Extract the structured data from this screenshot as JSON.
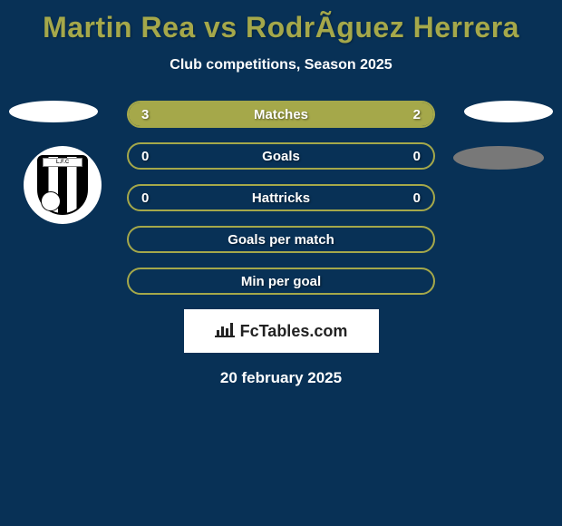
{
  "title": "Martin Rea vs RodrÃ­guez Herrera",
  "subtitle": "Club competitions, Season 2025",
  "crest_text": "L.F.C",
  "date": "20 february 2025",
  "logo": {
    "text": "FcTables.com"
  },
  "colors": {
    "background": "#083156",
    "title": "#a5a84a",
    "bar_fill": "#a5a84a",
    "bar_border": "#a5a84a",
    "text": "#ffffff"
  },
  "stats": [
    {
      "label": "Matches",
      "left_value": "3",
      "right_value": "2",
      "left_pct": 60,
      "right_pct": 40
    },
    {
      "label": "Goals",
      "left_value": "0",
      "right_value": "0",
      "left_pct": 0,
      "right_pct": 0
    },
    {
      "label": "Hattricks",
      "left_value": "0",
      "right_value": "0",
      "left_pct": 0,
      "right_pct": 0
    },
    {
      "label": "Goals per match",
      "left_value": "",
      "right_value": "",
      "left_pct": 0,
      "right_pct": 0
    },
    {
      "label": "Min per goal",
      "left_value": "",
      "right_value": "",
      "left_pct": 0,
      "right_pct": 0
    }
  ]
}
